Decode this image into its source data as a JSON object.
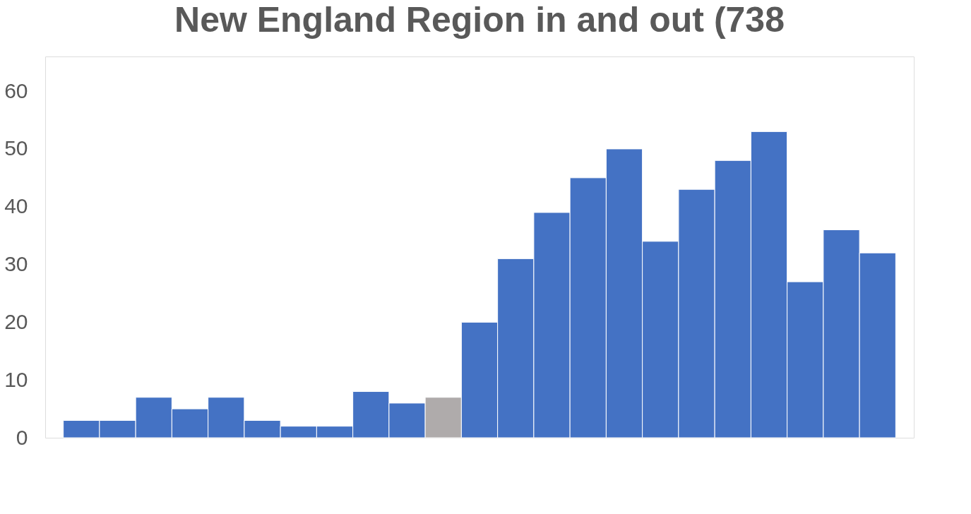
{
  "chart_data": {
    "type": "bar",
    "title": "New England Region in and out (738",
    "categories": [
      null,
      null,
      null,
      null,
      null,
      null,
      null,
      null,
      null,
      null,
      null,
      null,
      null,
      null,
      null,
      null,
      null,
      null,
      null,
      null,
      null,
      null,
      null
    ],
    "values": [
      3,
      3,
      7,
      5,
      7,
      3,
      2,
      2,
      8,
      6,
      7,
      20,
      31,
      39,
      45,
      50,
      34,
      43,
      48,
      53,
      27,
      36,
      32
    ],
    "colors": [
      "#4472c4",
      "#4472c4",
      "#4472c4",
      "#4472c4",
      "#4472c4",
      "#4472c4",
      "#4472c4",
      "#4472c4",
      "#4472c4",
      "#4472c4",
      "#afabab",
      "#4472c4",
      "#4472c4",
      "#4472c4",
      "#4472c4",
      "#4472c4",
      "#4472c4",
      "#4472c4",
      "#4472c4",
      "#4472c4",
      "#4472c4",
      "#4472c4",
      "#4472c4"
    ],
    "ylim": [
      0,
      66
    ],
    "yticks": [
      0,
      10,
      20,
      30,
      40,
      50,
      60
    ],
    "grid": false,
    "tick_labels": "y"
  }
}
